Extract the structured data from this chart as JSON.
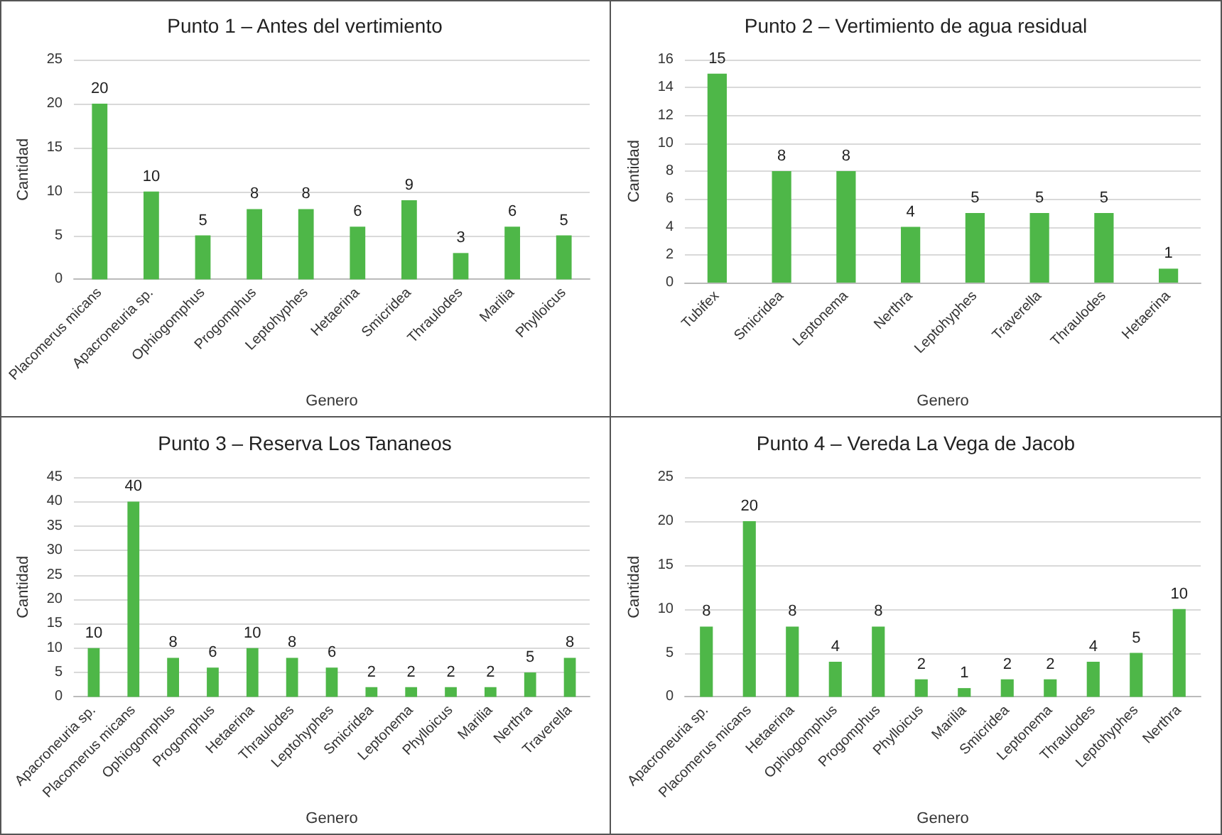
{
  "chart_data": [
    {
      "type": "bar",
      "title": "Punto 1 – Antes del vertimiento",
      "xlabel": "Genero",
      "ylabel": "Cantidad",
      "categories": [
        "Placomerus micans",
        "Apacroneuria sp.",
        "Ophiogomphus",
        "Progomphus",
        "Leptohyphes",
        "Hetaerina",
        "Smicridea",
        "Thraulodes",
        "Marilia",
        "Phylloicus"
      ],
      "values": [
        20,
        10,
        5,
        8,
        8,
        6,
        9,
        3,
        6,
        5
      ],
      "color": "#4eb748",
      "ylim": [
        0,
        25
      ],
      "yticks": [
        0,
        5,
        10,
        15,
        20,
        25
      ],
      "grid": "y",
      "data_labels": true
    },
    {
      "type": "bar",
      "title": "Punto 2 – Vertimiento de agua residual",
      "xlabel": "Genero",
      "ylabel": "Cantidad",
      "categories": [
        "Tubifex",
        "Smicridea",
        "Leptonema",
        "Nerthra",
        "Leptohyphes",
        "Traverella",
        "Thraulodes",
        "Hetaerina"
      ],
      "values": [
        15,
        8,
        8,
        4,
        5,
        5,
        5,
        1
      ],
      "color": "#4eb748",
      "ylim": [
        0,
        16
      ],
      "yticks": [
        0,
        2,
        4,
        6,
        8,
        10,
        12,
        14,
        16
      ],
      "grid": "y",
      "data_labels": true
    },
    {
      "type": "bar",
      "title": "Punto 3 – Reserva Los Tananeos",
      "xlabel": "Genero",
      "ylabel": "Cantidad",
      "categories": [
        "Apacroneuria sp.",
        "Placomerus micans",
        "Ophiogomphus",
        "Progomphus",
        "Hetaerina",
        "Thraulodes",
        "Leptohyphes",
        "Smicridea",
        "Leptonema",
        "Phylloicus",
        "Marilia",
        "Nerthra",
        "Traverella"
      ],
      "values": [
        10,
        40,
        8,
        6,
        10,
        8,
        6,
        2,
        2,
        2,
        2,
        5,
        8
      ],
      "color": "#4eb748",
      "ylim": [
        0,
        45
      ],
      "yticks": [
        0,
        5,
        10,
        15,
        20,
        25,
        30,
        35,
        40,
        45
      ],
      "grid": "y",
      "data_labels": true
    },
    {
      "type": "bar",
      "title": "Punto 4 – Vereda La Vega de Jacob",
      "xlabel": "Genero",
      "ylabel": "Cantidad",
      "categories": [
        "Apacroneuria sp.",
        "Placomerus micans",
        "Hetaerina",
        "Ophiogomphus",
        "Progomphus",
        "Phylloicus",
        "Marilia",
        "Smicridea",
        "Leptonema",
        "Thraulodes",
        "Leptohyphes",
        "Nerthra"
      ],
      "values": [
        8,
        20,
        8,
        4,
        8,
        2,
        1,
        2,
        2,
        4,
        5,
        10
      ],
      "color": "#4eb748",
      "ylim": [
        0,
        25
      ],
      "yticks": [
        0,
        5,
        10,
        15,
        20,
        25
      ],
      "grid": "y",
      "data_labels": true
    }
  ]
}
